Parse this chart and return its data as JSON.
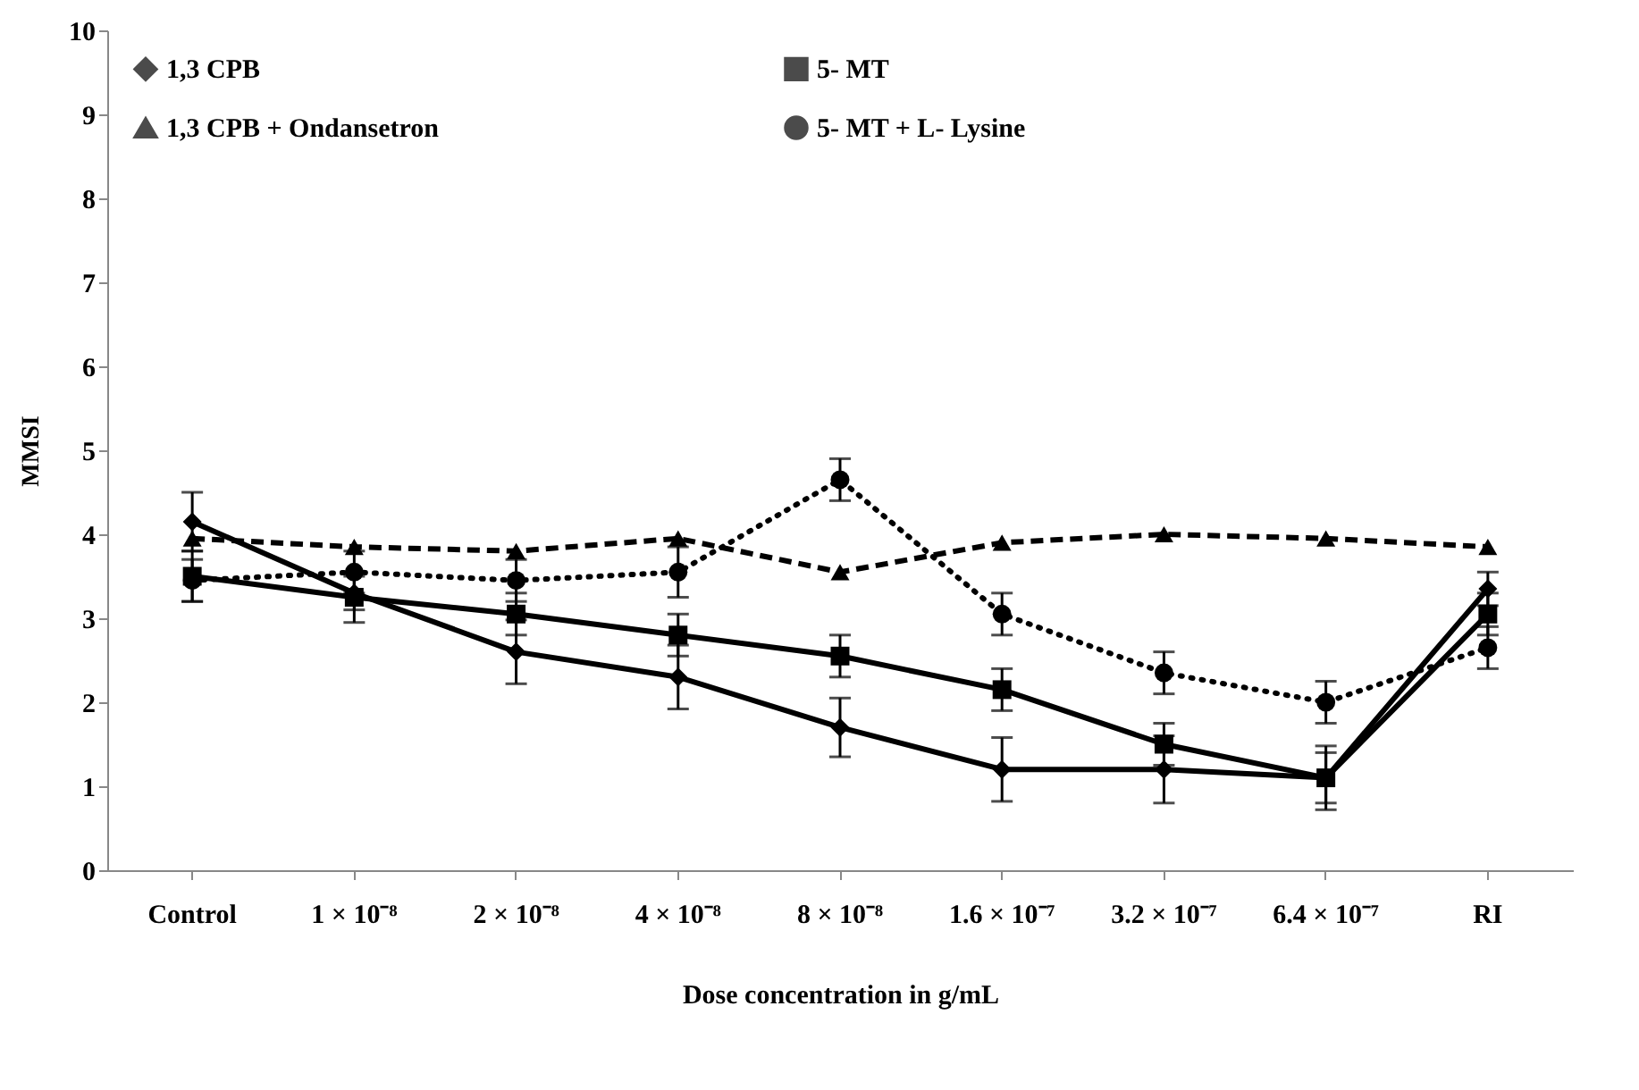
{
  "chart_data": {
    "type": "line",
    "xlabel": "Dose concentration in g/mL",
    "ylabel": "MMSI",
    "categories": [
      "Control",
      "1 × 10⁻⁸",
      "2 × 10⁻⁸",
      "4 × 10⁻⁸",
      "8 × 10⁻⁸",
      "1.6 × 10⁻⁷",
      "3.2 × 10⁻⁷",
      "6.4 × 10⁻⁷",
      "RI"
    ],
    "ylim": [
      0,
      10
    ],
    "yticks": [
      0,
      1,
      2,
      3,
      4,
      5,
      6,
      7,
      8,
      9,
      10
    ],
    "grid": false,
    "legend": "top",
    "series": [
      {
        "name": "1,3 CPB",
        "color": "#000000",
        "marker": "diamond",
        "line_style": "solid",
        "values": [
          4.15,
          3.3,
          2.6,
          2.3,
          1.7,
          1.2,
          1.2,
          1.1,
          3.35
        ],
        "errors": [
          0.35,
          0.2,
          0.38,
          0.38,
          0.35,
          0.38,
          0.4,
          0.38,
          0.2
        ]
      },
      {
        "name": "5- MT",
        "color": "#000000",
        "marker": "square",
        "line_style": "solid",
        "values": [
          3.5,
          3.25,
          3.05,
          2.8,
          2.55,
          2.15,
          1.5,
          1.1,
          3.05
        ],
        "errors": [
          0.3,
          0.3,
          0.25,
          0.25,
          0.25,
          0.25,
          0.25,
          0.3,
          0.25
        ]
      },
      {
        "name": "1,3 CPB + Ondansetron",
        "color": "#000000",
        "marker": "triangle",
        "line_style": "dashed",
        "values": [
          3.95,
          3.85,
          3.8,
          3.95,
          3.55,
          3.9,
          4.0,
          3.95,
          3.85
        ]
      },
      {
        "name": "5- MT + L- Lysine",
        "color": "#000000",
        "marker": "circle",
        "line_style": "dotted",
        "values": [
          3.45,
          3.55,
          3.45,
          3.55,
          4.65,
          3.05,
          2.35,
          2.0,
          2.65
        ],
        "errors": [
          0.25,
          0.25,
          0.25,
          0.3,
          0.25,
          0.25,
          0.25,
          0.25,
          0.25
        ]
      }
    ]
  }
}
